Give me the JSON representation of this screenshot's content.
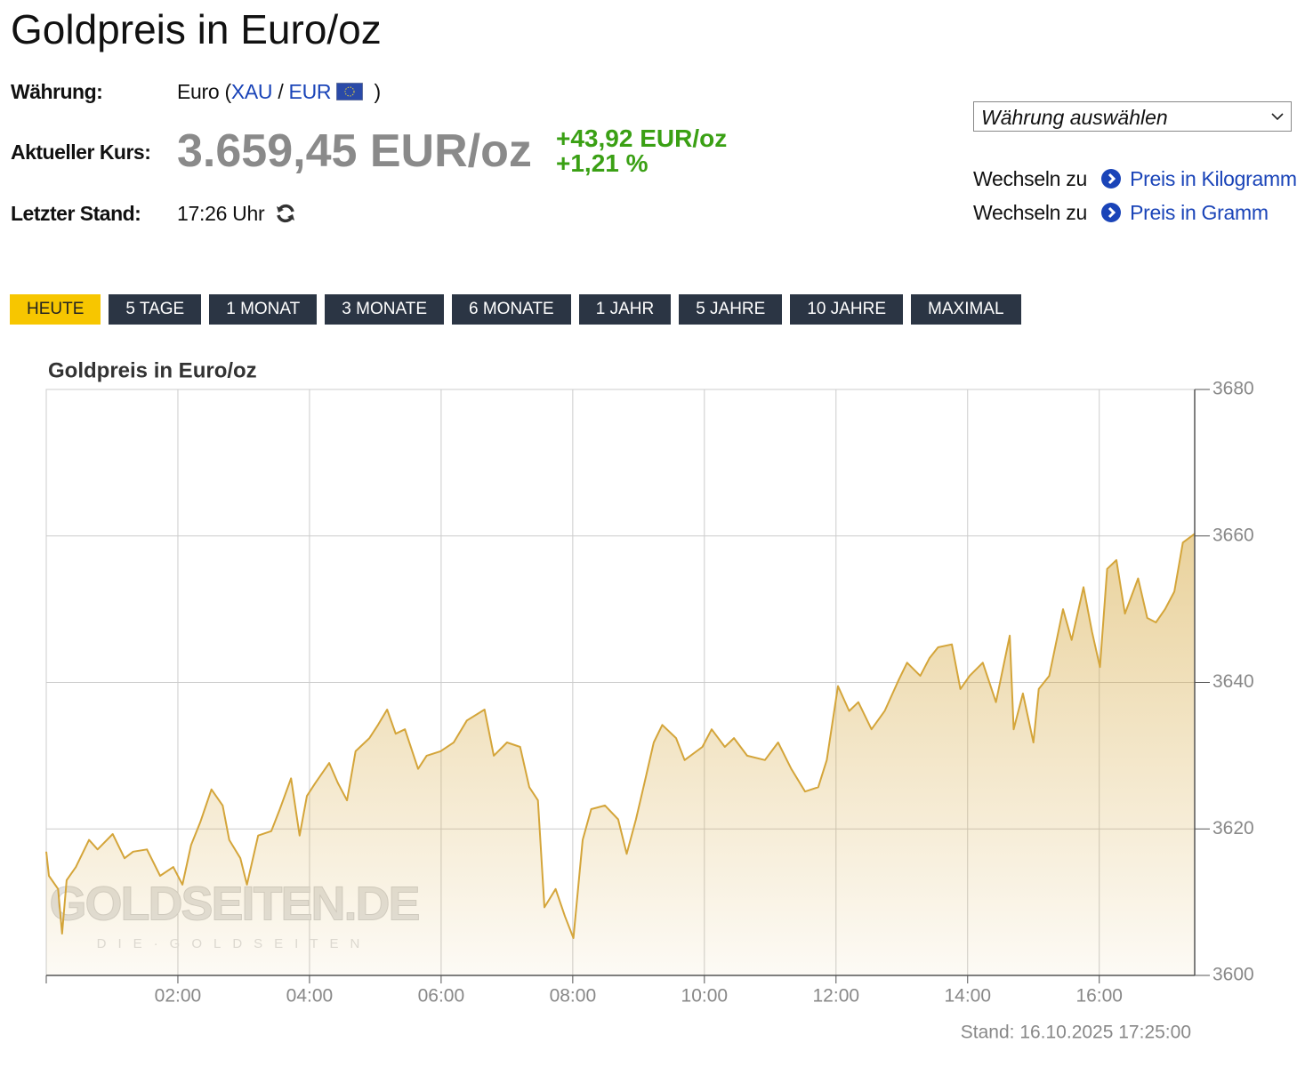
{
  "header": {
    "title": "Goldpreis in Euro/oz"
  },
  "info": {
    "currency": {
      "label": "Währung:",
      "name": "Euro (",
      "base": "XAU",
      "separator": "/",
      "quote": "EUR",
      "close": ")"
    },
    "price": {
      "label": "Aktueller Kurs:",
      "value": "3.659,45 EUR/oz",
      "change": "+43,92 EUR/oz",
      "change_pct": "+1,21 %"
    },
    "updated": {
      "label": "Letzter Stand:",
      "value": "17:26 Uhr"
    }
  },
  "currency_select": {
    "placeholder": "Währung auswählen"
  },
  "links": [
    {
      "prefix": "Wechseln zu",
      "text": "Preis in Kilogramm"
    },
    {
      "prefix": "Wechseln zu",
      "text": "Preis in Gramm"
    }
  ],
  "tabs": [
    "HEUTE",
    "5 TAGE",
    "1 MONAT",
    "3 MONATE",
    "6 MONATE",
    "1 JAHR",
    "5 JAHRE",
    "10 JAHRE",
    "MAXIMAL"
  ],
  "active_tab": 0,
  "chart_data": {
    "type": "area",
    "title": "Goldpreis in Euro/oz",
    "annotation": "Stand: 16.10.2025 17:25:00",
    "watermark": {
      "text": "GOLDSEITEN.DE",
      "subtext": "DIE·GOLDSEITEN"
    },
    "color": "#d4a53a",
    "grid": true,
    "x": [
      0,
      0.04,
      0.18,
      0.24,
      0.31,
      0.45,
      0.65,
      0.78,
      1.01,
      1.19,
      1.32,
      1.53,
      1.73,
      1.93,
      2.07,
      2.2,
      2.34,
      2.51,
      2.68,
      2.78,
      2.95,
      3.05,
      3.22,
      3.42,
      3.55,
      3.72,
      3.85,
      3.96,
      4.09,
      4.3,
      4.43,
      4.57,
      4.7,
      4.91,
      5.04,
      5.18,
      5.31,
      5.45,
      5.65,
      5.78,
      5.99,
      6.19,
      6.39,
      6.66,
      6.8,
      7,
      7.2,
      7.34,
      7.47,
      7.57,
      7.74,
      7.88,
      8.01,
      8.15,
      8.28,
      8.49,
      8.69,
      8.82,
      8.96,
      9.09,
      9.23,
      9.36,
      9.57,
      9.7,
      9.97,
      10.11,
      10.31,
      10.45,
      10.65,
      10.92,
      11.12,
      11.32,
      11.53,
      11.73,
      11.86,
      12.03,
      12.2,
      12.34,
      12.54,
      12.74,
      12.95,
      13.08,
      13.28,
      13.42,
      13.55,
      13.76,
      13.89,
      14.03,
      14.23,
      14.43,
      14.64,
      14.7,
      14.84,
      15,
      15.08,
      15.24,
      15.45,
      15.58,
      15.76,
      15.89,
      16.01,
      16.12,
      16.26,
      16.39,
      16.59,
      16.73,
      16.86,
      17,
      17.14,
      17.27,
      17.45
    ],
    "values": [
      3616.9,
      3613.6,
      3611.8,
      3605.7,
      3613,
      3614.8,
      3618.5,
      3617.2,
      3619.3,
      3616,
      3616.9,
      3617.2,
      3613.6,
      3614.8,
      3612.4,
      3617.8,
      3620.9,
      3625.4,
      3623.2,
      3618.5,
      3616,
      3612.4,
      3619.1,
      3619.7,
      3622.7,
      3626.9,
      3619.1,
      3624.5,
      3626.3,
      3629,
      3626.3,
      3623.9,
      3630.6,
      3632.4,
      3634.2,
      3636.3,
      3633,
      3633.6,
      3628.2,
      3630,
      3630.6,
      3631.8,
      3634.8,
      3636.3,
      3630,
      3631.8,
      3631.2,
      3625.7,
      3623.9,
      3609.3,
      3611.8,
      3608.1,
      3605.1,
      3618.5,
      3622.7,
      3623.2,
      3621.3,
      3616.6,
      3621.3,
      3626.3,
      3631.8,
      3634.2,
      3632.4,
      3629.4,
      3631.2,
      3633.6,
      3631.2,
      3632.4,
      3630,
      3629.4,
      3631.8,
      3628.2,
      3625.1,
      3625.7,
      3629.4,
      3639.5,
      3636.1,
      3637.3,
      3633.6,
      3636.1,
      3640.3,
      3642.7,
      3640.9,
      3643.3,
      3644.8,
      3645.2,
      3639.1,
      3640.9,
      3642.7,
      3637.3,
      3646.4,
      3633.6,
      3638.5,
      3631.8,
      3639.1,
      3640.9,
      3650,
      3645.8,
      3653,
      3646.9,
      3642.1,
      3655.5,
      3656.7,
      3649.4,
      3654.2,
      3648.8,
      3648.2,
      3650,
      3652.4,
      3659.1,
      3660.3
    ],
    "xlim": [
      0,
      17.45
    ],
    "xticks": [
      {
        "value": 2,
        "label": "02:00"
      },
      {
        "value": 4,
        "label": "04:00"
      },
      {
        "value": 6,
        "label": "06:00"
      },
      {
        "value": 8,
        "label": "08:00"
      },
      {
        "value": 10,
        "label": "10:00"
      },
      {
        "value": 12,
        "label": "12:00"
      },
      {
        "value": 14,
        "label": "14:00"
      },
      {
        "value": 16,
        "label": "16:00"
      }
    ],
    "ylim": [
      3600,
      3680
    ],
    "yticks": [
      3600,
      3620,
      3640,
      3660,
      3680
    ]
  }
}
